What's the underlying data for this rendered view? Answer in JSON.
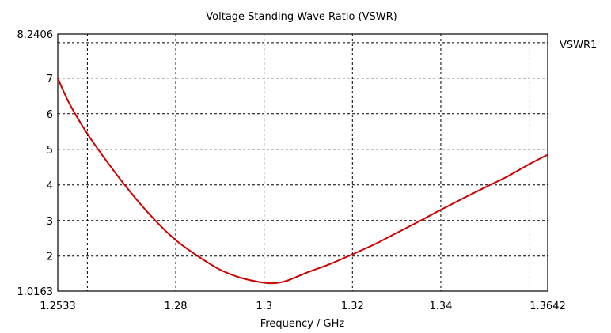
{
  "chart_data": {
    "type": "line",
    "title": "Voltage Standing Wave Ratio (VSWR)",
    "xlabel": "Frequency / GHz",
    "ylabel": "",
    "xlim": [
      1.2533,
      1.3642
    ],
    "ylim": [
      1.0163,
      8.2406
    ],
    "x_ticks": [
      "1.2533",
      "1.28",
      "1.3",
      "1.32",
      "1.34",
      "1.3642"
    ],
    "y_ticks": [
      "1.0163",
      "2",
      "3",
      "4",
      "5",
      "6",
      "7",
      "8.2406"
    ],
    "grid": true,
    "legend_position": "top-right",
    "series": [
      {
        "name": "VSWR1",
        "color": "#cc0000",
        "x": [
          1.2533,
          1.256,
          1.26,
          1.265,
          1.27,
          1.275,
          1.28,
          1.285,
          1.29,
          1.295,
          1.3,
          1.3025,
          1.305,
          1.31,
          1.315,
          1.32,
          1.325,
          1.33,
          1.335,
          1.34,
          1.345,
          1.35,
          1.355,
          1.36,
          1.3642
        ],
        "y": [
          7.0,
          6.27,
          5.44,
          4.56,
          3.76,
          3.05,
          2.45,
          2.0,
          1.62,
          1.38,
          1.25,
          1.24,
          1.3,
          1.55,
          1.78,
          2.05,
          2.33,
          2.65,
          2.97,
          3.3,
          3.62,
          3.93,
          4.23,
          4.58,
          4.85
        ]
      }
    ]
  }
}
